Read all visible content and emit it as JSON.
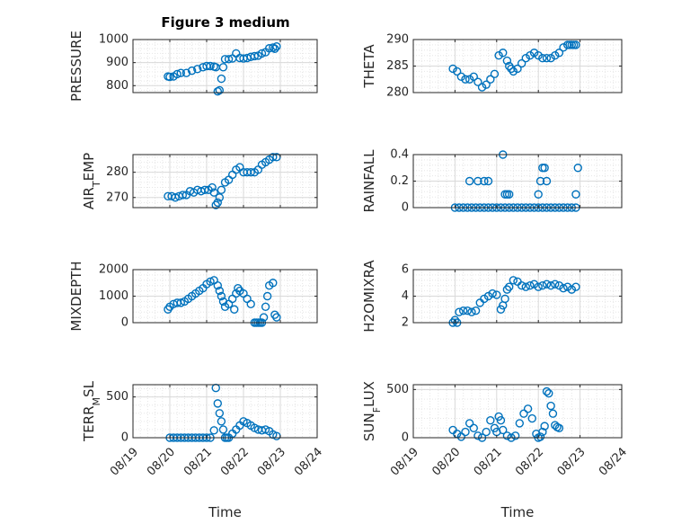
{
  "figure": {
    "title": "Figure 3 medium"
  },
  "colors": {
    "marker": "#0072BD",
    "axis": "#262626",
    "grid": "#d9d9d9",
    "background": "#ffffff"
  },
  "chart_data": [
    {
      "type": "scatter",
      "title": "Figure 3 medium",
      "ylabel": "PRESSURE",
      "ylabel_sub": "",
      "xlim": [
        "08/19",
        "08/24"
      ],
      "ylim": [
        770,
        1000
      ],
      "yticks": [
        800,
        900,
        1000
      ],
      "xticks": [
        "08/19",
        "08/20",
        "08/21",
        "08/22",
        "08/23",
        "08/24"
      ],
      "x": [
        "08/19",
        "08/20",
        "08/21",
        "08/22",
        "08/23",
        "08/24"
      ],
      "x_num": [
        0,
        1,
        2,
        3,
        4,
        5
      ],
      "grid": true,
      "xlabel": "",
      "show_xticklabels": false,
      "series": [
        {
          "x": [
            0.95,
            1.0,
            1.1,
            1.2,
            1.3,
            1.45,
            1.6,
            1.75,
            1.9,
            2.0,
            2.1,
            2.2,
            2.25,
            2.3,
            2.35,
            2.4,
            2.45,
            2.5,
            2.6,
            2.7,
            2.8,
            2.9,
            3.0,
            3.1,
            3.2,
            3.3,
            3.4,
            3.5,
            3.6,
            3.7,
            3.8,
            3.85,
            3.9
          ],
          "y": [
            840,
            838,
            840,
            850,
            855,
            855,
            865,
            872,
            880,
            885,
            885,
            883,
            880,
            775,
            780,
            830,
            880,
            915,
            915,
            918,
            940,
            920,
            918,
            920,
            925,
            928,
            930,
            940,
            945,
            962,
            965,
            960,
            970
          ]
        }
      ]
    },
    {
      "type": "scatter",
      "title": "",
      "ylabel": "THETA",
      "ylabel_sub": "",
      "xlim": [
        "08/19",
        "08/24"
      ],
      "ylim": [
        280,
        290
      ],
      "yticks": [
        280,
        285,
        290
      ],
      "xticks": [
        "08/19",
        "08/20",
        "08/21",
        "08/22",
        "08/23",
        "08/24"
      ],
      "x": [
        "08/19",
        "08/20",
        "08/21",
        "08/22",
        "08/23",
        "08/24"
      ],
      "x_num": [
        0,
        1,
        2,
        3,
        4,
        5
      ],
      "grid": true,
      "xlabel": "",
      "show_xticklabels": false,
      "series": [
        {
          "x": [
            0.95,
            1.05,
            1.15,
            1.25,
            1.35,
            1.45,
            1.55,
            1.65,
            1.75,
            1.85,
            1.95,
            2.05,
            2.15,
            2.25,
            2.3,
            2.35,
            2.4,
            2.5,
            2.6,
            2.7,
            2.8,
            2.9,
            3.0,
            3.1,
            3.2,
            3.3,
            3.4,
            3.5,
            3.6,
            3.7,
            3.75,
            3.8,
            3.85,
            3.9
          ],
          "y": [
            284.5,
            284,
            283,
            282.5,
            282.5,
            283,
            282,
            281,
            281.5,
            282.5,
            283.5,
            287,
            287.5,
            286,
            285,
            284.5,
            284,
            284.5,
            285.5,
            286.5,
            287,
            287.5,
            287,
            286.5,
            286.5,
            286.5,
            287,
            287.5,
            288.5,
            289,
            289,
            289,
            289,
            289
          ]
        }
      ]
    },
    {
      "type": "scatter",
      "title": "",
      "ylabel": "AIR",
      "ylabel_sub": "T",
      "ylabel_rest": "EMP",
      "xlim": [
        "08/19",
        "08/24"
      ],
      "ylim": [
        266,
        287
      ],
      "yticks": [
        270,
        280
      ],
      "xticks": [
        "08/19",
        "08/20",
        "08/21",
        "08/22",
        "08/23",
        "08/24"
      ],
      "x": [
        "08/19",
        "08/20",
        "08/21",
        "08/22",
        "08/23",
        "08/24"
      ],
      "x_num": [
        0,
        1,
        2,
        3,
        4,
        5
      ],
      "grid": true,
      "xlabel": "",
      "show_xticklabels": false,
      "series": [
        {
          "x": [
            0.95,
            1.05,
            1.15,
            1.25,
            1.35,
            1.45,
            1.55,
            1.65,
            1.75,
            1.85,
            1.95,
            2.05,
            2.15,
            2.2,
            2.25,
            2.3,
            2.35,
            2.4,
            2.5,
            2.6,
            2.7,
            2.8,
            2.9,
            3.0,
            3.1,
            3.2,
            3.3,
            3.4,
            3.5,
            3.6,
            3.7,
            3.8,
            3.9
          ],
          "y": [
            270.5,
            270.5,
            270,
            270.5,
            271,
            271,
            272.5,
            272,
            273,
            272.5,
            273,
            273,
            274,
            272,
            267,
            268,
            270,
            273,
            276,
            277,
            279,
            281,
            282,
            280,
            280,
            280,
            280,
            281,
            283,
            284,
            285,
            286,
            286
          ]
        }
      ]
    },
    {
      "type": "scatter",
      "title": "",
      "ylabel": "RAINFALL",
      "ylabel_sub": "",
      "xlim": [
        "08/19",
        "08/24"
      ],
      "ylim": [
        0,
        0.4
      ],
      "yticks": [
        0,
        0.2,
        0.4
      ],
      "xticks": [
        "08/19",
        "08/20",
        "08/21",
        "08/22",
        "08/23",
        "08/24"
      ],
      "x": [
        "08/19",
        "08/20",
        "08/21",
        "08/22",
        "08/23",
        "08/24"
      ],
      "x_num": [
        0,
        1,
        2,
        3,
        4,
        5
      ],
      "grid": true,
      "xlabel": "",
      "show_xticklabels": false,
      "series": [
        {
          "x": [
            1.0,
            1.1,
            1.2,
            1.3,
            1.4,
            1.5,
            1.6,
            1.7,
            1.8,
            1.9,
            2.0,
            2.1,
            2.2,
            2.3,
            2.4,
            2.5,
            2.6,
            2.7,
            2.8,
            2.9,
            3.0,
            3.1,
            3.2,
            3.3,
            3.4,
            3.5,
            3.6,
            3.7,
            3.8,
            3.9,
            1.35,
            1.55,
            1.7,
            1.8,
            2.2,
            2.25,
            2.3,
            2.15,
            3.0,
            3.05,
            3.1,
            3.15,
            3.2,
            3.9,
            3.95
          ],
          "y": [
            0,
            0,
            0,
            0,
            0,
            0,
            0,
            0,
            0,
            0,
            0,
            0,
            0,
            0,
            0,
            0,
            0,
            0,
            0,
            0,
            0,
            0,
            0,
            0,
            0,
            0,
            0,
            0,
            0,
            0,
            0.2,
            0.2,
            0.2,
            0.2,
            0.1,
            0.1,
            0.1,
            0.4,
            0.1,
            0.2,
            0.3,
            0.3,
            0.2,
            0.1,
            0.3
          ]
        }
      ]
    },
    {
      "type": "scatter",
      "title": "",
      "ylabel": "MIXDEPTH",
      "ylabel_sub": "",
      "xlim": [
        "08/19",
        "08/24"
      ],
      "ylim": [
        0,
        2000
      ],
      "yticks": [
        0,
        1000,
        2000
      ],
      "xticks": [
        "08/19",
        "08/20",
        "08/21",
        "08/22",
        "08/23",
        "08/24"
      ],
      "x": [
        "08/19",
        "08/20",
        "08/21",
        "08/22",
        "08/23",
        "08/24"
      ],
      "x_num": [
        0,
        1,
        2,
        3,
        4,
        5
      ],
      "grid": true,
      "xlabel": "",
      "show_xticklabels": false,
      "series": [
        {
          "x": [
            0.95,
            1.0,
            1.1,
            1.2,
            1.3,
            1.4,
            1.5,
            1.6,
            1.7,
            1.8,
            1.9,
            2.0,
            2.1,
            2.2,
            2.3,
            2.35,
            2.4,
            2.45,
            2.5,
            2.6,
            2.7,
            2.75,
            2.8,
            2.85,
            2.9,
            3.0,
            3.1,
            3.2,
            3.3,
            3.35,
            3.4,
            3.45,
            3.5,
            3.55,
            3.6,
            3.65,
            3.7,
            3.8,
            3.85,
            3.9
          ],
          "y": [
            500,
            600,
            700,
            750,
            750,
            800,
            900,
            1000,
            1100,
            1200,
            1300,
            1450,
            1550,
            1600,
            1400,
            1200,
            1000,
            800,
            600,
            700,
            900,
            500,
            1100,
            1300,
            1200,
            1100,
            900,
            700,
            0,
            0,
            0,
            0,
            0,
            200,
            600,
            1000,
            1400,
            1500,
            300,
            200
          ]
        }
      ]
    },
    {
      "type": "scatter",
      "title": "",
      "ylabel": "H2OMIXRA",
      "ylabel_sub": "",
      "xlim": [
        "08/19",
        "08/24"
      ],
      "ylim": [
        2,
        6
      ],
      "yticks": [
        2,
        4,
        6
      ],
      "xticks": [
        "08/19",
        "08/20",
        "08/21",
        "08/22",
        "08/23",
        "08/24"
      ],
      "x": [
        "08/19",
        "08/20",
        "08/21",
        "08/22",
        "08/23",
        "08/24"
      ],
      "x_num": [
        0,
        1,
        2,
        3,
        4,
        5
      ],
      "grid": true,
      "xlabel": "",
      "show_xticklabels": false,
      "series": [
        {
          "x": [
            0.95,
            1.0,
            1.05,
            1.1,
            1.2,
            1.3,
            1.4,
            1.5,
            1.6,
            1.7,
            1.8,
            1.9,
            2.0,
            2.1,
            2.15,
            2.2,
            2.25,
            2.3,
            2.4,
            2.5,
            2.6,
            2.7,
            2.8,
            2.9,
            3.0,
            3.1,
            3.2,
            3.3,
            3.4,
            3.5,
            3.6,
            3.7,
            3.8,
            3.9
          ],
          "y": [
            2.0,
            2.2,
            2.0,
            2.8,
            2.9,
            2.9,
            2.8,
            2.9,
            3.5,
            3.8,
            4.0,
            4.2,
            4.1,
            3.0,
            3.3,
            3.8,
            4.5,
            4.7,
            5.2,
            5.1,
            4.8,
            4.7,
            4.8,
            4.9,
            4.7,
            4.8,
            4.9,
            4.8,
            4.9,
            4.8,
            4.6,
            4.7,
            4.5,
            4.7
          ]
        }
      ]
    },
    {
      "type": "scatter",
      "title": "",
      "ylabel": "TERR",
      "ylabel_sub": "M",
      "ylabel_rest": "SL",
      "xlim": [
        "08/19",
        "08/24"
      ],
      "ylim": [
        0,
        650
      ],
      "yticks": [
        0,
        500
      ],
      "xticks": [
        "08/19",
        "08/20",
        "08/21",
        "08/22",
        "08/23",
        "08/24"
      ],
      "x": [
        "08/19",
        "08/20",
        "08/21",
        "08/22",
        "08/23",
        "08/24"
      ],
      "x_num": [
        0,
        1,
        2,
        3,
        4,
        5
      ],
      "grid": true,
      "xlabel": "Time",
      "show_xticklabels": true,
      "series": [
        {
          "x": [
            1.0,
            1.1,
            1.2,
            1.3,
            1.4,
            1.5,
            1.6,
            1.7,
            1.8,
            1.9,
            2.0,
            2.1,
            2.2,
            2.25,
            2.3,
            2.35,
            2.4,
            2.45,
            2.5,
            2.55,
            2.6,
            2.7,
            2.8,
            2.9,
            3.0,
            3.1,
            3.2,
            3.3,
            3.4,
            3.5,
            3.6,
            3.7,
            3.8,
            3.9
          ],
          "y": [
            0,
            0,
            0,
            0,
            0,
            0,
            0,
            0,
            0,
            0,
            0,
            0,
            90,
            610,
            420,
            300,
            200,
            100,
            0,
            0,
            0,
            50,
            100,
            150,
            200,
            180,
            150,
            120,
            100,
            90,
            100,
            80,
            40,
            20
          ]
        }
      ]
    },
    {
      "type": "scatter",
      "title": "",
      "ylabel": "SUN",
      "ylabel_sub": "F",
      "ylabel_rest": "LUX",
      "xlim": [
        "08/19",
        "08/24"
      ],
      "ylim": [
        0,
        550
      ],
      "yticks": [
        0,
        500
      ],
      "xticks": [
        "08/19",
        "08/20",
        "08/21",
        "08/22",
        "08/23",
        "08/24"
      ],
      "x": [
        "08/19",
        "08/20",
        "08/21",
        "08/22",
        "08/23",
        "08/24"
      ],
      "x_num": [
        0,
        1,
        2,
        3,
        4,
        5
      ],
      "grid": true,
      "xlabel": "Time",
      "show_xticklabels": true,
      "series": [
        {
          "x": [
            0.95,
            1.05,
            1.15,
            1.25,
            1.35,
            1.45,
            1.55,
            1.65,
            1.75,
            1.85,
            1.95,
            2.0,
            2.05,
            2.1,
            2.15,
            2.25,
            2.35,
            2.45,
            2.55,
            2.65,
            2.75,
            2.85,
            2.95,
            3.0,
            3.05,
            3.1,
            3.15,
            3.2,
            3.25,
            3.3,
            3.35,
            3.4,
            3.45,
            3.5
          ],
          "y": [
            80,
            40,
            10,
            60,
            150,
            100,
            20,
            0,
            60,
            180,
            100,
            60,
            220,
            180,
            80,
            20,
            0,
            20,
            150,
            250,
            300,
            200,
            40,
            0,
            10,
            60,
            120,
            480,
            460,
            330,
            250,
            130,
            110,
            100
          ]
        }
      ]
    }
  ]
}
